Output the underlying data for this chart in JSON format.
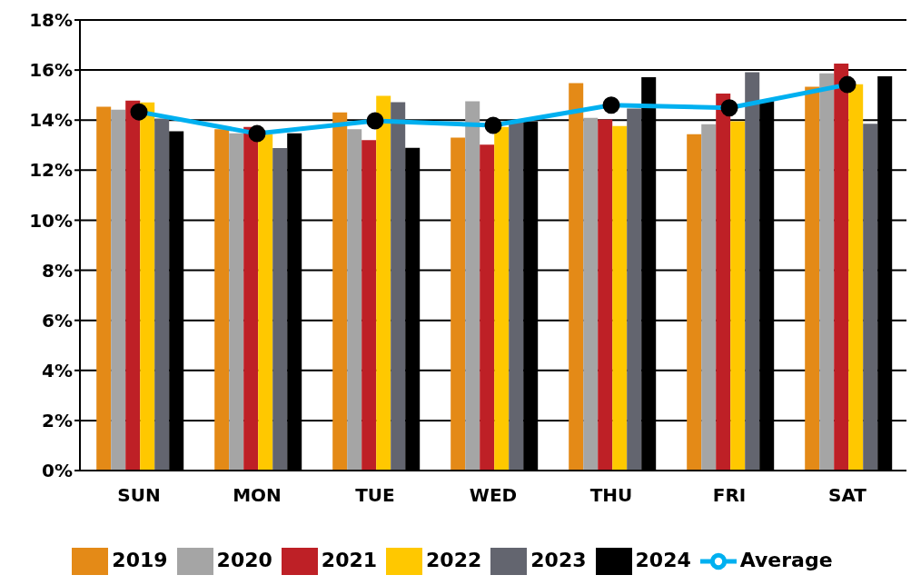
{
  "chart_data": {
    "type": "bar",
    "categories": [
      "SUN",
      "MON",
      "TUE",
      "WED",
      "THU",
      "FRI",
      "SAT"
    ],
    "series": [
      {
        "name": "2019",
        "color": "#e48a17",
        "values": [
          14.53,
          13.64,
          14.31,
          13.3,
          15.48,
          13.44,
          15.33
        ]
      },
      {
        "name": "2020",
        "color": "#a5a5a5",
        "values": [
          14.42,
          13.47,
          13.64,
          14.75,
          14.09,
          13.84,
          15.87
        ]
      },
      {
        "name": "2021",
        "color": "#be2026",
        "values": [
          14.78,
          13.73,
          13.2,
          13.02,
          14.03,
          15.06,
          16.26
        ]
      },
      {
        "name": "2022",
        "color": "#ffc800",
        "values": [
          14.71,
          13.44,
          14.97,
          13.73,
          13.76,
          13.95,
          15.43
        ]
      },
      {
        "name": "2023",
        "color": "#63656f",
        "values": [
          14.06,
          12.88,
          14.72,
          13.9,
          14.46,
          15.91,
          13.85
        ]
      },
      {
        "name": "2024",
        "color": "#000000",
        "values": [
          13.55,
          13.47,
          12.89,
          13.95,
          15.71,
          14.76,
          15.75
        ]
      },
      {
        "name": "Average",
        "type": "line",
        "color": "#00b0f0",
        "marker": "circle",
        "values": [
          14.33,
          13.46,
          13.97,
          13.79,
          14.6,
          14.49,
          15.42
        ]
      }
    ],
    "ylim": [
      0,
      18
    ],
    "yticks": [
      {
        "value": 0,
        "label": "0%"
      },
      {
        "value": 2,
        "label": "2%"
      },
      {
        "value": 4,
        "label": "4%"
      },
      {
        "value": 6,
        "label": "6%"
      },
      {
        "value": 8,
        "label": "8%"
      },
      {
        "value": 10,
        "label": "10%"
      },
      {
        "value": 12,
        "label": "12%"
      },
      {
        "value": 14,
        "label": "14%"
      },
      {
        "value": 16,
        "label": "16%"
      },
      {
        "value": 18,
        "label": "18%"
      }
    ],
    "grid": "y",
    "legend": "bottom"
  }
}
